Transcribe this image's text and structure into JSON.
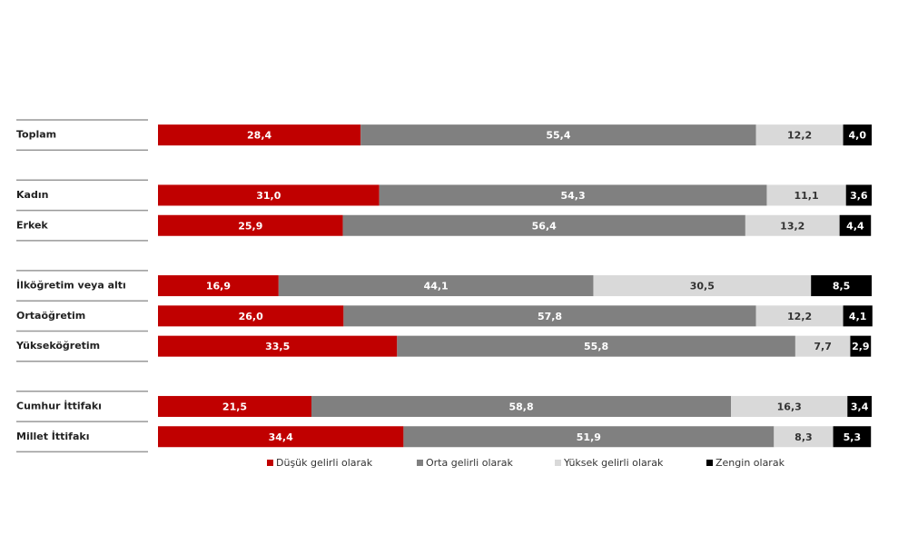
{
  "chart_data": {
    "type": "stacked-bar-horizontal",
    "categories": [
      "Toplam",
      "Kadın",
      "Erkek",
      "İlköğretim veya altı",
      "Ortaöğretim",
      "Yükseköğretim",
      "Cumhur İttifakı",
      "Millet İttifakı"
    ],
    "series": [
      {
        "name": "Düşük gelirli olarak",
        "color": "#c00000",
        "values": [
          28.4,
          31.0,
          25.9,
          16.9,
          26.0,
          33.5,
          21.5,
          34.4
        ],
        "value_labels": [
          "28,4",
          "31,0",
          "25,9",
          "16,9",
          "26,0",
          "33,5",
          "21,5",
          "34,4"
        ]
      },
      {
        "name": "Orta gelirli olarak",
        "color": "#808080",
        "values": [
          55.4,
          54.3,
          56.4,
          44.1,
          57.8,
          55.8,
          58.8,
          51.9
        ],
        "value_labels": [
          "55,4",
          "54,3",
          "56,4",
          "44,1",
          "57,8",
          "55,8",
          "58,8",
          "51,9"
        ]
      },
      {
        "name": "Yüksek gelirli olarak",
        "color": "#d9d9d9",
        "values": [
          12.2,
          11.1,
          13.2,
          30.5,
          12.2,
          7.7,
          16.3,
          8.3
        ],
        "value_labels": [
          "12,2",
          "11,1",
          "13,2",
          "30,5",
          "12,2",
          "7,7",
          "16,3",
          "8,3"
        ]
      },
      {
        "name": "Zengin olarak",
        "color": "#000000",
        "values": [
          4.0,
          3.6,
          4.4,
          8.5,
          4.1,
          2.9,
          3.4,
          5.3
        ],
        "value_labels": [
          "4,0",
          "3,6",
          "4,4",
          "8,5",
          "4,1",
          "2,9",
          "3,4",
          "5,3"
        ]
      }
    ],
    "xlim": [
      0,
      100
    ]
  }
}
